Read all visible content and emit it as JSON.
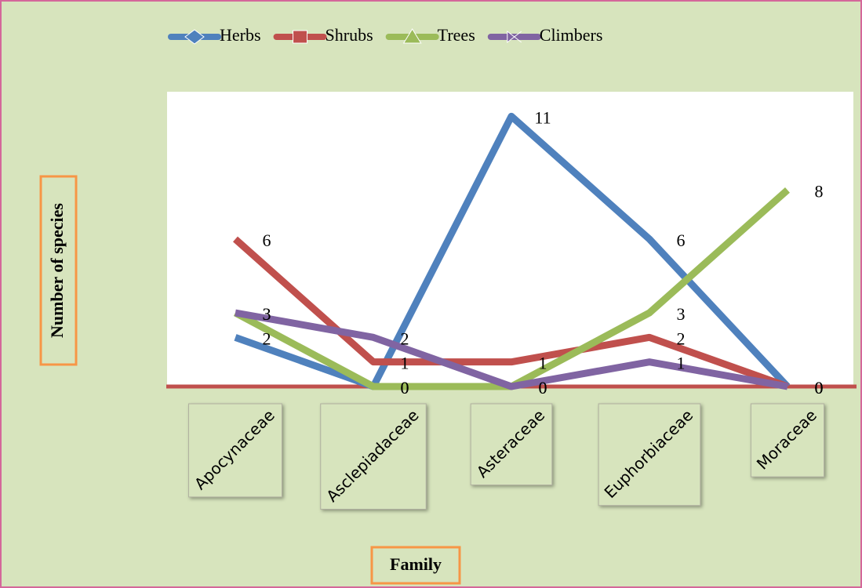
{
  "chart_data": {
    "type": "line",
    "x_label": "Family",
    "y_label": "Number of species",
    "categories": [
      "Apocynaceae",
      "Asclepiadaceae",
      "Asteraceae",
      "Euphorbiaceae",
      "Moraceae"
    ],
    "series": [
      {
        "name": "Herbs",
        "color": "#4f81bd",
        "values": [
          2,
          0,
          11,
          6,
          0
        ]
      },
      {
        "name": "Shrubs",
        "color": "#c0504d",
        "values": [
          6,
          1,
          1,
          2,
          0
        ]
      },
      {
        "name": "Trees",
        "color": "#9bbb59",
        "values": [
          3,
          0,
          0,
          3,
          8
        ]
      },
      {
        "name": "Climbers",
        "color": "#8064a2",
        "values": [
          3,
          2,
          0,
          1,
          0
        ]
      }
    ],
    "ylim": [
      0,
      12
    ],
    "legend": "top"
  }
}
